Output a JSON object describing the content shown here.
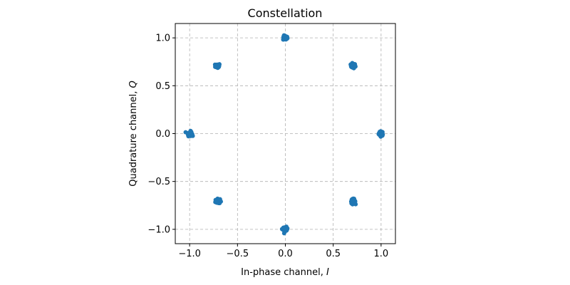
{
  "chart_data": {
    "type": "scatter",
    "title": "Constellation",
    "xlabel": "In-phase channel, ",
    "xlabel_var": "I",
    "ylabel": "Quadrature channel, ",
    "ylabel_var": "Q",
    "xlim": [
      -1.15,
      1.15
    ],
    "ylim": [
      -1.15,
      1.15
    ],
    "xticks": [
      -1.0,
      -0.5,
      0.0,
      0.5,
      1.0
    ],
    "yticks": [
      -1.0,
      -0.5,
      0.0,
      0.5,
      1.0
    ],
    "xtick_labels": [
      "−1.0",
      "−0.5",
      "0.0",
      "0.5",
      "1.0"
    ],
    "ytick_labels": [
      "−1.0",
      "−0.5",
      "0.0",
      "0.5",
      "1.0"
    ],
    "grid": true,
    "marker_color": "#1f77b4",
    "x": [
      1.0,
      0.707,
      0.0,
      -0.707,
      -1.0,
      -0.707,
      0.0,
      0.707
    ],
    "y": [
      0.0,
      0.707,
      1.0,
      0.707,
      0.0,
      -0.707,
      -1.0,
      -0.707
    ]
  }
}
